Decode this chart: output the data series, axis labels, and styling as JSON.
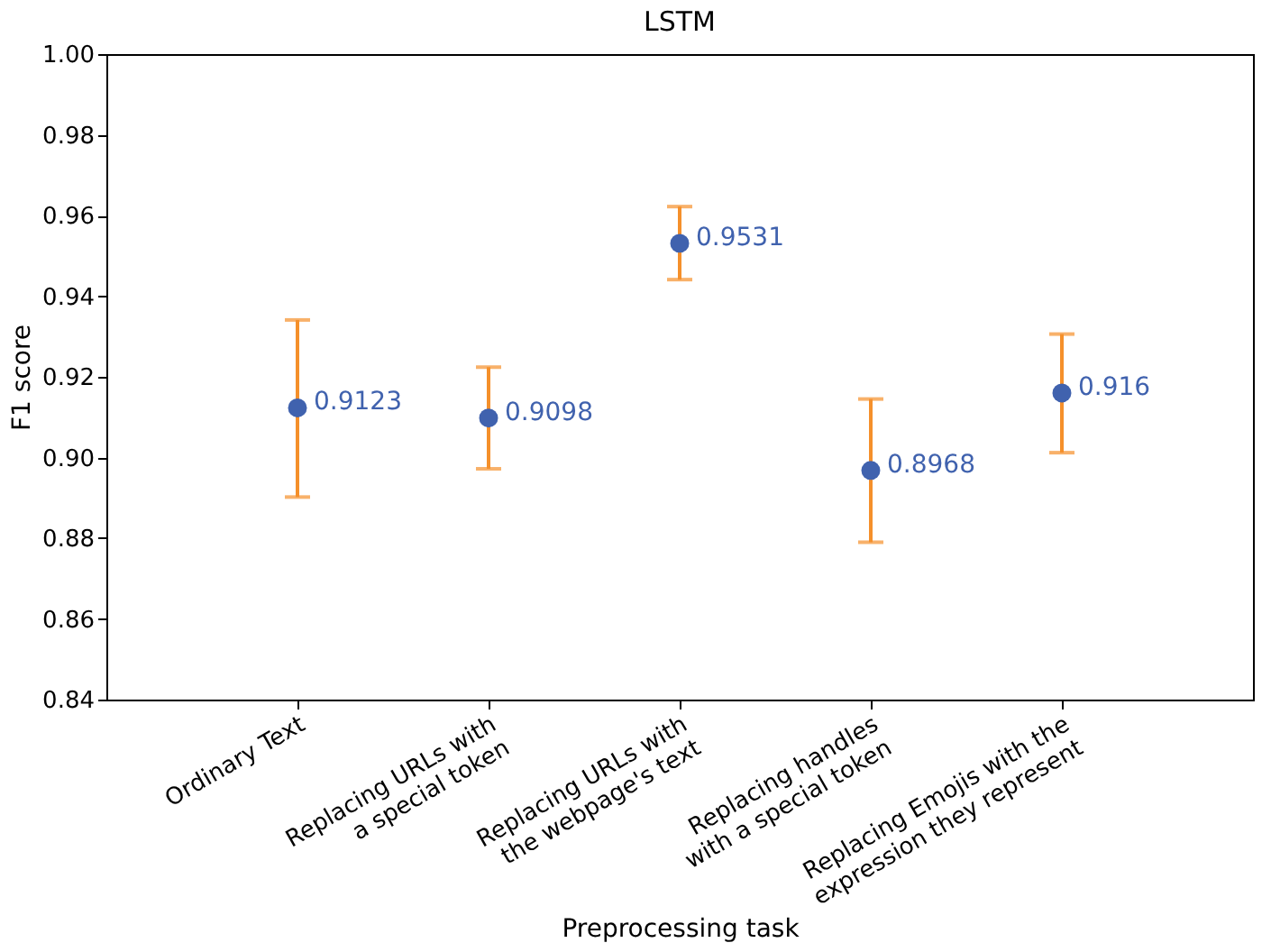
{
  "chart_data": {
    "type": "scatter",
    "title": "LSTM",
    "xlabel": "Preprocessing task",
    "ylabel": "F1 score",
    "categories": [
      "Ordinary Text",
      "Replacing URLs with\na special token",
      "Replacing URLs with\nthe webpage's text",
      "Replacing handles\nwith a special token",
      "Replacing Emojis with the\nexpression they represent"
    ],
    "series": [
      {
        "color": "#4062ae",
        "values": [
          0.9123,
          0.9098,
          0.9531,
          0.8968,
          0.916
        ],
        "errors": [
          [
            0.8902,
            0.9341
          ],
          [
            0.8972,
            0.9224
          ],
          [
            0.9441,
            0.9622
          ],
          [
            0.879,
            0.9145
          ],
          [
            0.9012,
            0.9306
          ]
        ]
      }
    ],
    "data_labels": true,
    "marker": "circle",
    "ylim": [
      0.84,
      1.0
    ],
    "yticks": [
      0.84,
      0.86,
      0.88,
      {
        "value": 0.9,
        "label": "0.90"
      },
      0.92,
      0.94,
      0.96,
      0.98,
      {
        "value": 1.0,
        "label": "1.00"
      }
    ],
    "grid": false
  }
}
